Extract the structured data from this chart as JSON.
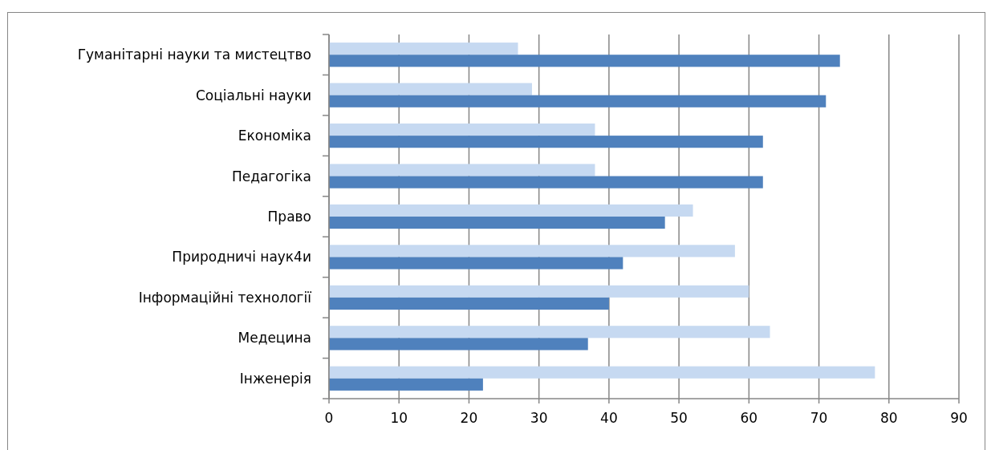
{
  "chart_data": {
    "type": "bar",
    "orientation": "horizontal",
    "categories": [
      "Гуманітарні науки та мистецтво",
      "Соціальні науки",
      "Економіка",
      "Педагогіка",
      "Право",
      "Природничі наук4и",
      "Інформаційні технології",
      "Медецина",
      "Інженерія"
    ],
    "series": [
      {
        "color": "#c6d9f1",
        "values": [
          27,
          29,
          38,
          38,
          52,
          58,
          60,
          63,
          78
        ]
      },
      {
        "color": "#4f81bd",
        "values": [
          73,
          71,
          62,
          62,
          48,
          42,
          40,
          37,
          22
        ]
      }
    ],
    "xlim": [
      0,
      90
    ],
    "xticks": [
      0,
      10,
      20,
      30,
      40,
      50,
      60,
      70,
      80,
      90
    ],
    "grid": "x"
  }
}
